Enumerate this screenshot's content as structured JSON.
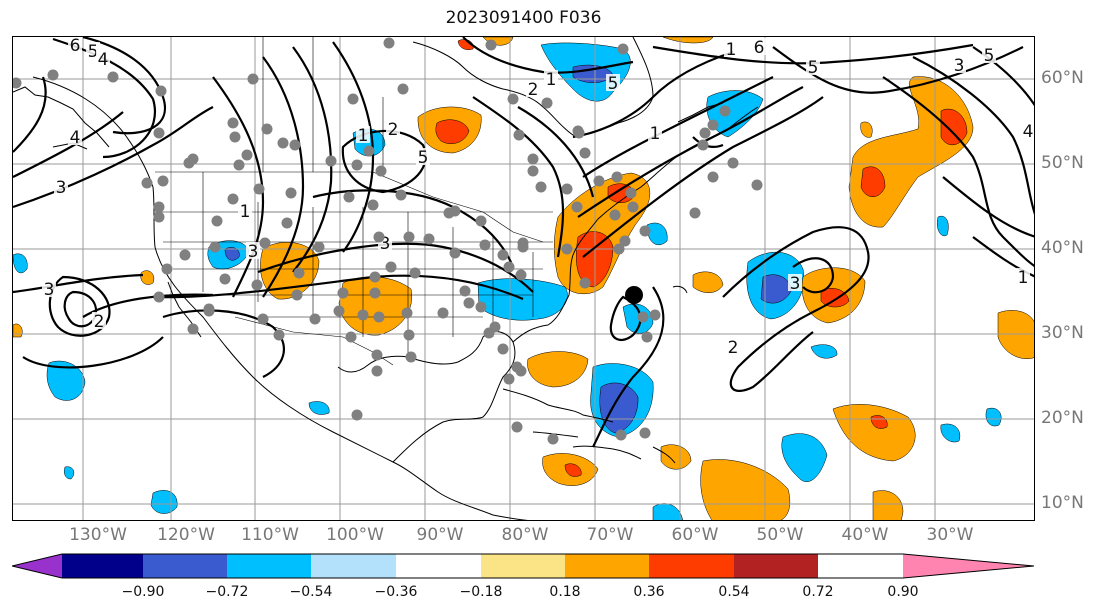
{
  "title": "2023091400 F036",
  "lon_labels": [
    "130°W",
    "120°W",
    "110°W",
    "100°W",
    "90°W",
    "80°W",
    "70°W",
    "60°W",
    "50°W",
    "40°W",
    "30°W"
  ],
  "lat_labels": [
    "60°N",
    "50°N",
    "40°N",
    "30°N",
    "20°N",
    "10°N"
  ],
  "colorbar": {
    "labels": [
      "−0.90",
      "−0.72",
      "−0.54",
      "−0.36",
      "−0.18",
      "0.18",
      "0.36",
      "0.54",
      "0.72",
      "0.90"
    ],
    "colors": [
      "#9932cc",
      "#00008b",
      "#3a5bd0",
      "#00bfff",
      "#b3e0fb",
      "#ffffff",
      "#fbe486",
      "#ffa500",
      "#ff3c00",
      "#b22222",
      "#ff85b0"
    ]
  },
  "fill_colors": {
    "orange": "#ffa500",
    "red": "#ff3c00",
    "light_blue": "#00bfff",
    "blue": "#3a5bd0",
    "station": "#808080"
  },
  "contour_labels": [
    "6",
    "5",
    "4",
    "4",
    "3",
    "2",
    "1",
    "3",
    "3",
    "2",
    "3",
    "1",
    "5",
    "1",
    "6",
    "5",
    "3",
    "3",
    "2",
    "1",
    "4",
    "1",
    "2",
    "1",
    "5",
    "5"
  ]
}
